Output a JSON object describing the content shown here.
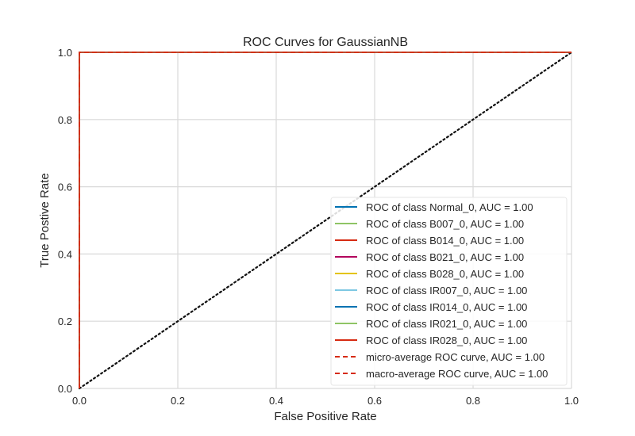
{
  "chart_data": {
    "type": "line",
    "title": "ROC Curves for GaussianNB",
    "xlabel": "False Positive Rate",
    "ylabel": "True Postive Rate",
    "xlim": [
      0,
      1
    ],
    "ylim": [
      0,
      1
    ],
    "x_ticks": [
      "0.0",
      "0.2",
      "0.4",
      "0.6",
      "0.8",
      "1.0"
    ],
    "y_ticks": [
      "0.0",
      "0.2",
      "0.4",
      "0.6",
      "0.8",
      "1.0"
    ],
    "grid": true,
    "legend_position": "lower-right",
    "series": [
      {
        "name": "ROC of class Normal_0, AUC = 1.00",
        "color": "#0072b2",
        "dash": false,
        "x": [
          0,
          0,
          1
        ],
        "y": [
          0,
          1,
          1
        ]
      },
      {
        "name": "ROC of class B007_0, AUC = 1.00",
        "color": "#8fc465",
        "dash": false,
        "x": [
          0,
          0,
          1
        ],
        "y": [
          0,
          1,
          1
        ]
      },
      {
        "name": "ROC of class B014_0, AUC = 1.00",
        "color": "#d62b12",
        "dash": false,
        "x": [
          0,
          0,
          1
        ],
        "y": [
          0,
          1,
          1
        ]
      },
      {
        "name": "ROC of class B021_0, AUC = 1.00",
        "color": "#b2005c",
        "dash": false,
        "x": [
          0,
          0,
          1
        ],
        "y": [
          0,
          1,
          1
        ]
      },
      {
        "name": "ROC of class B028_0, AUC = 1.00",
        "color": "#e3c300",
        "dash": false,
        "x": [
          0,
          0,
          1
        ],
        "y": [
          0,
          1,
          1
        ]
      },
      {
        "name": "ROC of class IR007_0, AUC = 1.00",
        "color": "#7ec8e3",
        "dash": false,
        "x": [
          0,
          0,
          1
        ],
        "y": [
          0,
          1,
          1
        ]
      },
      {
        "name": "ROC of class IR014_0, AUC = 1.00",
        "color": "#0072b2",
        "dash": false,
        "x": [
          0,
          0,
          1
        ],
        "y": [
          0,
          1,
          1
        ]
      },
      {
        "name": "ROC of class IR021_0, AUC = 1.00",
        "color": "#8fc465",
        "dash": false,
        "x": [
          0,
          0,
          1
        ],
        "y": [
          0,
          1,
          1
        ]
      },
      {
        "name": "ROC of class IR028_0, AUC = 1.00",
        "color": "#d62b12",
        "dash": false,
        "x": [
          0,
          0,
          1
        ],
        "y": [
          0,
          1,
          1
        ]
      },
      {
        "name": "micro-average ROC curve, AUC = 1.00",
        "color": "#d62b12",
        "dash": true,
        "x": [
          0,
          0,
          1
        ],
        "y": [
          0,
          1,
          1
        ]
      },
      {
        "name": "macro-average ROC curve, AUC = 1.00",
        "color": "#d62b12",
        "dash": true,
        "x": [
          0,
          0,
          1
        ],
        "y": [
          0,
          1,
          1
        ]
      }
    ],
    "reference_line": {
      "x": [
        0,
        1
      ],
      "y": [
        0,
        1
      ],
      "color": "#111111",
      "style": "dotted"
    }
  }
}
